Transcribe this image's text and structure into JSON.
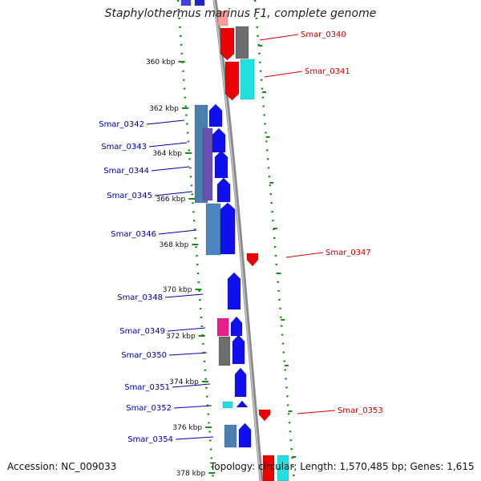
{
  "title": "Staphylothermus marinus F1, complete genome",
  "footer": {
    "accession": "Accession: NC_009033",
    "summary": "Topology: circular; Length: 1,570,485 bp; Genes: 1,615"
  },
  "colors": {
    "backbone": "#8a8a8a",
    "ruler": "#1a8a1a",
    "label_forward": "#0000aa",
    "label_reverse": "#cc0000"
  },
  "ruler_ticks": [
    "360 kbp",
    "362 kbp",
    "364 kbp",
    "366 kbp",
    "368 kbp",
    "370 kbp",
    "372 kbp",
    "374 kbp",
    "376 kbp",
    "378 kbp"
  ],
  "genes": [
    {
      "label": "Smar_0340",
      "strand": "reverse"
    },
    {
      "label": "Smar_0341",
      "strand": "reverse"
    },
    {
      "label": "Smar_0342",
      "strand": "forward"
    },
    {
      "label": "Smar_0343",
      "strand": "forward"
    },
    {
      "label": "Smar_0344",
      "strand": "forward"
    },
    {
      "label": "Smar_0345",
      "strand": "forward"
    },
    {
      "label": "Smar_0346",
      "strand": "forward"
    },
    {
      "label": "Smar_0347",
      "strand": "reverse"
    },
    {
      "label": "Smar_0348",
      "strand": "forward"
    },
    {
      "label": "Smar_0349",
      "strand": "forward"
    },
    {
      "label": "Smar_0350",
      "strand": "forward"
    },
    {
      "label": "Smar_0351",
      "strand": "forward"
    },
    {
      "label": "Smar_0352",
      "strand": "forward"
    },
    {
      "label": "Smar_0353",
      "strand": "reverse"
    },
    {
      "label": "Smar_0354",
      "strand": "forward"
    }
  ]
}
